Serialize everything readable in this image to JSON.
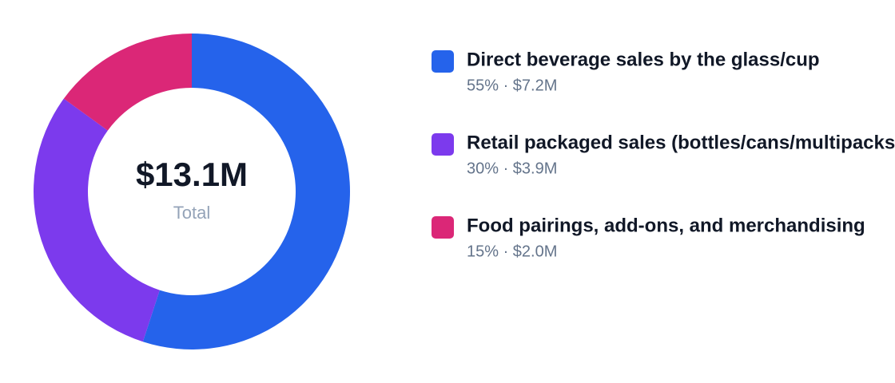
{
  "chart_data": {
    "type": "pie",
    "donut": true,
    "center_value": "$13.1M",
    "center_label": "Total",
    "categories": [
      "Direct beverage sales by the glass/cup",
      "Retail packaged sales (bottles/cans/multipacks)",
      "Food pairings, add-ons, and merchandising"
    ],
    "values": [
      55,
      30,
      15
    ],
    "value_labels": [
      "55% · $7.2M",
      "30% · $3.9M",
      "15% · $2.0M"
    ],
    "colors": [
      "#2563eb",
      "#7c3aed",
      "#db2777"
    ]
  }
}
